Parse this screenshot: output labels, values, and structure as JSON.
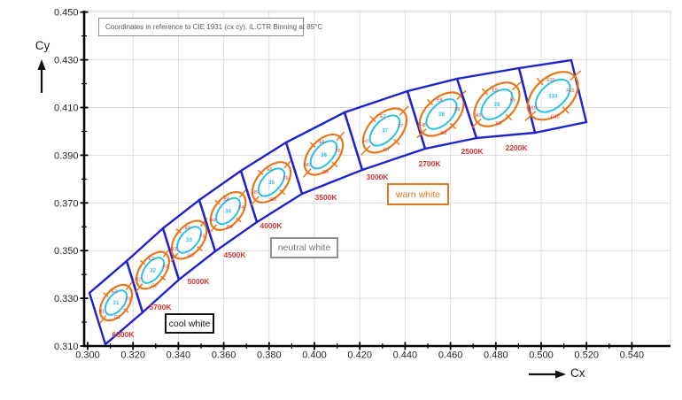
{
  "note": "Coordinates in reference to CIE 1931 (cx cy), iL.CTR Binning at 85°C",
  "axis_labels": {
    "x": "Cx",
    "y": "Cy"
  },
  "categories": [
    {
      "label": "cool white",
      "color": "#141414"
    },
    {
      "label": "neutral white",
      "color": "#8c8c8c"
    },
    {
      "label": "warn white",
      "color": "#e8761a"
    }
  ],
  "colors": {
    "band_blue": "#2222cc",
    "outer_ellipse_orange": "#e8761a",
    "inner_ellipse_cyan": "#2cc0e2",
    "bin_label_red": "#d43535",
    "grid": "#dcdcdc",
    "axis": "#000000",
    "tick_text": "#262626"
  },
  "chart_data": {
    "type": "scatter",
    "title": "Coordinates in reference to CIE 1931 (cx cy), iL.CTR Binning at 85°C",
    "xlabel": "Cx",
    "ylabel": "Cy",
    "xlim": [
      0.3,
      0.54
    ],
    "ylim": [
      0.31,
      0.45
    ],
    "grid": true,
    "x_ticks": [
      "0.300",
      "0.320",
      "0.340",
      "0.360",
      "0.380",
      "0.400",
      "0.420",
      "0.440",
      "0.460",
      "0.480",
      "0.500",
      "0.520",
      "0.540"
    ],
    "y_ticks": [
      "0.310",
      "0.330",
      "0.350",
      "0.370",
      "0.390",
      "0.410",
      "0.430",
      "0.450"
    ],
    "region_labels": [
      "cool white",
      "neutral white",
      "warn white"
    ],
    "bins": [
      {
        "cct": "6500K",
        "center_cx": 0.312,
        "center_cy": 0.328,
        "inner_label": "31",
        "quadrant_labels": [
          "E1",
          "F1",
          "G1",
          "H1"
        ]
      },
      {
        "cct": "5700K",
        "center_cx": 0.329,
        "center_cy": 0.342,
        "inner_label": "32",
        "quadrant_labels": [
          "E2",
          "F2",
          "G2",
          "H2"
        ]
      },
      {
        "cct": "5000K",
        "center_cx": 0.345,
        "center_cy": 0.355,
        "inner_label": "33",
        "quadrant_labels": [
          "E3",
          "F3",
          "G3",
          "H3"
        ]
      },
      {
        "cct": "4500K",
        "center_cx": 0.361,
        "center_cy": 0.366,
        "inner_label": "34",
        "quadrant_labels": [
          "E4",
          "F4",
          "G4",
          "H4"
        ]
      },
      {
        "cct": "4000K",
        "center_cx": 0.382,
        "center_cy": 0.38,
        "inner_label": "35",
        "quadrant_labels": [
          "E5",
          "F5",
          "G5",
          "H5"
        ]
      },
      {
        "cct": "3500K",
        "center_cx": 0.401,
        "center_cy": 0.39,
        "inner_label": "36",
        "quadrant_labels": [
          "E6",
          "F6",
          "G6",
          "H6"
        ]
      },
      {
        "cct": "3000K",
        "center_cx": 0.434,
        "center_cy": 0.403,
        "inner_label": "37",
        "quadrant_labels": [
          "E7",
          "F7",
          "G7",
          "H7"
        ]
      },
      {
        "cct": "2700K",
        "center_cx": 0.456,
        "center_cy": 0.409,
        "inner_label": "38",
        "quadrant_labels": [
          "E8",
          "F8",
          "G8",
          "H8"
        ]
      },
      {
        "cct": "2500K",
        "center_cx": 0.477,
        "center_cy": 0.414,
        "inner_label": "39",
        "quadrant_labels": [
          "E9",
          "F9",
          "G9",
          "H9"
        ]
      },
      {
        "cct": "2200K",
        "center_cx": 0.502,
        "center_cy": 0.417,
        "inner_label": "310",
        "quadrant_labels": [
          "E10",
          "F10",
          "G10",
          "H10"
        ]
      }
    ]
  }
}
